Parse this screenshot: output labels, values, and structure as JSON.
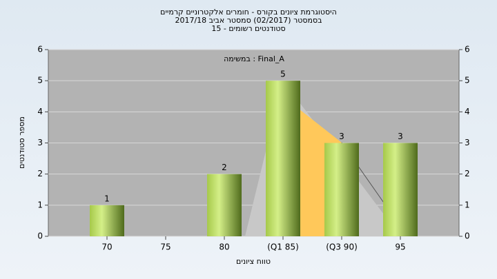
{
  "chart_data": {
    "type": "bar",
    "title_lines": [
      "היסטוגרמת ציונים בקורס - חומרים אלקטרוניים קרמיים",
      "בסמסטר  (02/2017)  סמסטר אביב 2017/18",
      "סטודנטים רשומים - 15"
    ],
    "annotation": "במשימה : Final_A",
    "x_label": "טווח ציונים",
    "y_label": "מספר סטודנטים",
    "categories": [
      "70",
      "75",
      "80",
      "(Q1 85)",
      "(Q3 90)",
      "95"
    ],
    "values": [
      1,
      0,
      2,
      5,
      3,
      3
    ],
    "ylim": [
      0,
      6
    ],
    "yticks": [
      0,
      1,
      2,
      3,
      4,
      5,
      6
    ],
    "y2lim": [
      0,
      6
    ],
    "y2ticks": [
      0,
      1,
      2,
      3,
      4,
      5,
      6
    ],
    "grid": true
  }
}
